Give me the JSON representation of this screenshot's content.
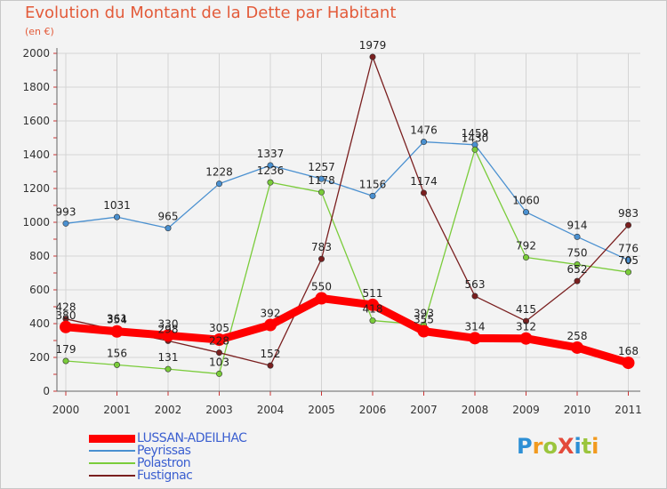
{
  "title": "Evolution du Montant de la Dette par Habitant",
  "subtitle": "(en €)",
  "logo": {
    "text": "ProXiti",
    "letters": [
      "P",
      "r",
      "o",
      "X",
      "i",
      "t",
      "i"
    ],
    "colors": [
      "#2d8fd5",
      "#f29a1e",
      "#9bc53d",
      "#e34a3a",
      "#2d8fd5",
      "#9bc53d",
      "#f29a1e"
    ]
  },
  "chart_data": {
    "type": "line",
    "title": "Evolution du Montant de la Dette par Habitant",
    "ylabel": "(en €)",
    "xlabel": "",
    "x": [
      "2000",
      "2001",
      "2002",
      "2003",
      "2004",
      "2005",
      "2006",
      "2007",
      "2008",
      "2009",
      "2010",
      "2011"
    ],
    "ylim": [
      0,
      2000
    ],
    "yticks": [
      "0",
      "200",
      "400",
      "600",
      "800",
      "1000",
      "1200",
      "1400",
      "1600",
      "1800",
      "2000"
    ],
    "grid": true,
    "legend": "bottom-left",
    "series": [
      {
        "name": "LUSSAN-ADEILHAC",
        "color": "#ff0000",
        "values": [
          380,
          354,
          330,
          305,
          392,
          550,
          511,
          355,
          314,
          312,
          258,
          168
        ],
        "labels": [
          "380",
          "354",
          "330",
          "305",
          "392",
          "550",
          "511",
          "355",
          "314",
          "312",
          "258",
          "168"
        ]
      },
      {
        "name": "Peyrissas",
        "color": "#4a90d0",
        "values": [
          993,
          1031,
          965,
          1228,
          1337,
          1257,
          1156,
          1476,
          1459,
          1060,
          914,
          776
        ],
        "labels": [
          "993",
          "1031",
          "965",
          "1228",
          "1337",
          "1257",
          "1156",
          "1476",
          "1459",
          "1060",
          "914",
          "776"
        ]
      },
      {
        "name": "Polastron",
        "color": "#7acc3a",
        "values": [
          179,
          156,
          131,
          103,
          1236,
          1178,
          418,
          393,
          1430,
          792,
          750,
          705
        ],
        "labels": [
          "179",
          "156",
          "131",
          "103",
          "1236",
          "1178",
          "418",
          "393",
          "1430",
          "792",
          "750",
          "705"
        ]
      },
      {
        "name": "Fustignac",
        "color": "#7a1f1f",
        "values": [
          428,
          361,
          298,
          228,
          152,
          783,
          1979,
          1174,
          563,
          415,
          652,
          983
        ],
        "labels": [
          "428",
          "361",
          "298",
          "228",
          "152",
          "783",
          "1979",
          "1174",
          "563",
          "415",
          "652",
          "983"
        ]
      }
    ]
  }
}
